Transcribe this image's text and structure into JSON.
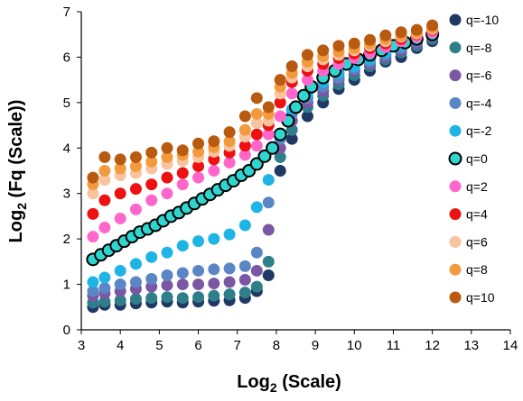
{
  "chart_data": {
    "type": "scatter",
    "xlabel_main": "Log",
    "xlabel_sub": "2",
    "xlabel_rest": " (Scale)",
    "ylabel_main": "Log",
    "ylabel_sub": "2",
    "ylabel_rest": " (Fq (Scale))",
    "xlim": [
      3,
      14
    ],
    "ylim": [
      0,
      7
    ],
    "x_ticks": [
      "3",
      "4",
      "5",
      "6",
      "7",
      "8",
      "9",
      "10",
      "11",
      "12",
      "13",
      "14"
    ],
    "y_ticks": [
      "0",
      "1",
      "2",
      "3",
      "4",
      "5",
      "6",
      "7"
    ],
    "grid": false,
    "legend_position": "right",
    "series": [
      {
        "name": "q=-10",
        "color": "#1f3864",
        "outline": "#1f3864",
        "points": [
          [
            3.3,
            0.5
          ],
          [
            3.6,
            0.55
          ],
          [
            4.0,
            0.55
          ],
          [
            4.4,
            0.58
          ],
          [
            4.8,
            0.6
          ],
          [
            5.2,
            0.62
          ],
          [
            5.6,
            0.6
          ],
          [
            6.0,
            0.62
          ],
          [
            6.4,
            0.64
          ],
          [
            6.8,
            0.65
          ],
          [
            7.2,
            0.7
          ],
          [
            7.5,
            0.85
          ],
          [
            7.8,
            1.2
          ],
          [
            8.1,
            3.5
          ],
          [
            8.4,
            4.2
          ],
          [
            8.8,
            4.7
          ],
          [
            9.2,
            5.0
          ],
          [
            9.6,
            5.3
          ],
          [
            10.0,
            5.5
          ],
          [
            10.4,
            5.7
          ],
          [
            10.8,
            5.9
          ],
          [
            11.2,
            6.0
          ],
          [
            11.6,
            6.2
          ],
          [
            12.0,
            6.35
          ]
        ]
      },
      {
        "name": "q=-8",
        "color": "#2e7f8a",
        "outline": "#2e7f8a",
        "points": [
          [
            3.3,
            0.6
          ],
          [
            3.6,
            0.62
          ],
          [
            4.0,
            0.65
          ],
          [
            4.4,
            0.68
          ],
          [
            4.8,
            0.7
          ],
          [
            5.2,
            0.72
          ],
          [
            5.6,
            0.7
          ],
          [
            6.0,
            0.72
          ],
          [
            6.4,
            0.75
          ],
          [
            6.8,
            0.78
          ],
          [
            7.2,
            0.82
          ],
          [
            7.5,
            0.95
          ],
          [
            7.8,
            1.5
          ],
          [
            8.1,
            3.8
          ],
          [
            8.4,
            4.4
          ],
          [
            8.8,
            4.9
          ],
          [
            9.2,
            5.15
          ],
          [
            9.6,
            5.4
          ],
          [
            10.0,
            5.6
          ],
          [
            10.4,
            5.8
          ],
          [
            10.8,
            5.95
          ],
          [
            11.2,
            6.1
          ],
          [
            11.6,
            6.25
          ],
          [
            12.0,
            6.4
          ]
        ]
      },
      {
        "name": "q=-6",
        "color": "#7a57a3",
        "outline": "#7a57a3",
        "points": [
          [
            3.3,
            0.75
          ],
          [
            3.6,
            0.8
          ],
          [
            4.0,
            0.85
          ],
          [
            4.4,
            0.9
          ],
          [
            4.8,
            0.95
          ],
          [
            5.2,
            0.98
          ],
          [
            5.6,
            1.0
          ],
          [
            6.0,
            1.0
          ],
          [
            6.4,
            1.02
          ],
          [
            6.8,
            1.05
          ],
          [
            7.2,
            1.1
          ],
          [
            7.5,
            1.3
          ],
          [
            7.8,
            2.2
          ],
          [
            8.1,
            4.0
          ],
          [
            8.4,
            4.6
          ],
          [
            8.8,
            5.0
          ],
          [
            9.2,
            5.25
          ],
          [
            9.6,
            5.5
          ],
          [
            10.0,
            5.7
          ],
          [
            10.4,
            5.85
          ],
          [
            10.8,
            6.0
          ],
          [
            11.2,
            6.15
          ],
          [
            11.6,
            6.3
          ],
          [
            12.0,
            6.45
          ]
        ]
      },
      {
        "name": "q=-4",
        "color": "#5b86c5",
        "outline": "#5b86c5",
        "points": [
          [
            3.3,
            0.85
          ],
          [
            3.6,
            0.92
          ],
          [
            4.0,
            1.0
          ],
          [
            4.4,
            1.05
          ],
          [
            4.8,
            1.12
          ],
          [
            5.2,
            1.2
          ],
          [
            5.6,
            1.25
          ],
          [
            6.0,
            1.3
          ],
          [
            6.4,
            1.33
          ],
          [
            6.8,
            1.35
          ],
          [
            7.2,
            1.4
          ],
          [
            7.5,
            1.7
          ],
          [
            7.8,
            2.8
          ],
          [
            8.1,
            4.2
          ],
          [
            8.4,
            4.75
          ],
          [
            8.8,
            5.1
          ],
          [
            9.2,
            5.35
          ],
          [
            9.6,
            5.55
          ],
          [
            10.0,
            5.75
          ],
          [
            10.4,
            5.9
          ],
          [
            10.8,
            6.05
          ],
          [
            11.2,
            6.2
          ],
          [
            11.6,
            6.35
          ],
          [
            12.0,
            6.48
          ]
        ]
      },
      {
        "name": "q=-2",
        "color": "#1fb4e6",
        "outline": "#1fb4e6",
        "points": [
          [
            3.3,
            1.05
          ],
          [
            3.6,
            1.15
          ],
          [
            4.0,
            1.3
          ],
          [
            4.4,
            1.45
          ],
          [
            4.8,
            1.6
          ],
          [
            5.2,
            1.7
          ],
          [
            5.6,
            1.85
          ],
          [
            6.0,
            1.95
          ],
          [
            6.4,
            2.0
          ],
          [
            6.8,
            2.1
          ],
          [
            7.2,
            2.3
          ],
          [
            7.5,
            2.7
          ],
          [
            7.8,
            3.3
          ],
          [
            8.1,
            4.3
          ],
          [
            8.4,
            4.85
          ],
          [
            8.8,
            5.2
          ],
          [
            9.2,
            5.45
          ],
          [
            9.6,
            5.65
          ],
          [
            10.0,
            5.8
          ],
          [
            10.4,
            5.95
          ],
          [
            10.8,
            6.1
          ],
          [
            11.2,
            6.25
          ],
          [
            11.6,
            6.4
          ],
          [
            12.0,
            6.5
          ]
        ]
      },
      {
        "name": "q=0",
        "color": "#2fd6d0",
        "outline": "#000000",
        "points": [
          [
            3.3,
            1.55
          ],
          [
            3.5,
            1.65
          ],
          [
            3.7,
            1.75
          ],
          [
            3.9,
            1.85
          ],
          [
            4.1,
            1.95
          ],
          [
            4.3,
            2.05
          ],
          [
            4.5,
            2.15
          ],
          [
            4.7,
            2.22
          ],
          [
            4.9,
            2.3
          ],
          [
            5.1,
            2.4
          ],
          [
            5.3,
            2.5
          ],
          [
            5.5,
            2.58
          ],
          [
            5.7,
            2.68
          ],
          [
            5.9,
            2.78
          ],
          [
            6.1,
            2.88
          ],
          [
            6.3,
            2.98
          ],
          [
            6.5,
            3.08
          ],
          [
            6.7,
            3.18
          ],
          [
            6.9,
            3.28
          ],
          [
            7.1,
            3.4
          ],
          [
            7.3,
            3.5
          ],
          [
            7.5,
            3.65
          ],
          [
            7.7,
            3.82
          ],
          [
            7.9,
            4.0
          ],
          [
            8.1,
            4.3
          ],
          [
            8.3,
            4.6
          ],
          [
            8.5,
            4.9
          ],
          [
            8.7,
            5.15
          ],
          [
            8.9,
            5.35
          ],
          [
            9.2,
            5.55
          ],
          [
            9.5,
            5.7
          ],
          [
            9.8,
            5.85
          ],
          [
            10.1,
            5.95
          ],
          [
            10.4,
            6.05
          ],
          [
            10.7,
            6.15
          ],
          [
            11.0,
            6.25
          ],
          [
            11.3,
            6.32
          ],
          [
            11.6,
            6.4
          ],
          [
            12.0,
            6.5
          ]
        ]
      },
      {
        "name": "q=2",
        "color": "#ff66cc",
        "outline": "#ff66cc",
        "points": [
          [
            3.3,
            2.05
          ],
          [
            3.6,
            2.25
          ],
          [
            4.0,
            2.45
          ],
          [
            4.4,
            2.65
          ],
          [
            4.8,
            2.85
          ],
          [
            5.2,
            3.0
          ],
          [
            5.6,
            3.2
          ],
          [
            6.0,
            3.35
          ],
          [
            6.4,
            3.5
          ],
          [
            6.8,
            3.68
          ],
          [
            7.2,
            3.85
          ],
          [
            7.5,
            4.05
          ],
          [
            7.8,
            4.3
          ],
          [
            8.1,
            4.7
          ],
          [
            8.4,
            5.2
          ],
          [
            8.8,
            5.5
          ],
          [
            9.2,
            5.7
          ],
          [
            9.6,
            5.85
          ],
          [
            10.0,
            5.98
          ],
          [
            10.4,
            6.1
          ],
          [
            10.8,
            6.22
          ],
          [
            11.2,
            6.35
          ],
          [
            11.6,
            6.45
          ],
          [
            12.0,
            6.55
          ]
        ]
      },
      {
        "name": "q=4",
        "color": "#ee1111",
        "outline": "#ee1111",
        "points": [
          [
            3.3,
            2.55
          ],
          [
            3.6,
            2.85
          ],
          [
            4.0,
            3.0
          ],
          [
            4.4,
            3.1
          ],
          [
            4.8,
            3.2
          ],
          [
            5.2,
            3.35
          ],
          [
            5.6,
            3.45
          ],
          [
            6.0,
            3.6
          ],
          [
            6.4,
            3.75
          ],
          [
            6.8,
            3.9
          ],
          [
            7.2,
            4.05
          ],
          [
            7.5,
            4.3
          ],
          [
            7.8,
            4.5
          ],
          [
            8.1,
            5.0
          ],
          [
            8.4,
            5.45
          ],
          [
            8.8,
            5.7
          ],
          [
            9.2,
            5.85
          ],
          [
            9.6,
            5.98
          ],
          [
            10.0,
            6.08
          ],
          [
            10.4,
            6.2
          ],
          [
            10.8,
            6.3
          ],
          [
            11.2,
            6.4
          ],
          [
            11.6,
            6.5
          ],
          [
            12.0,
            6.6
          ]
        ]
      },
      {
        "name": "q=6",
        "color": "#f9c39e",
        "outline": "#f9c39e",
        "points": [
          [
            3.3,
            3.0
          ],
          [
            3.6,
            3.3
          ],
          [
            4.0,
            3.4
          ],
          [
            4.4,
            3.45
          ],
          [
            4.8,
            3.55
          ],
          [
            5.2,
            3.65
          ],
          [
            5.6,
            3.72
          ],
          [
            6.0,
            3.8
          ],
          [
            6.4,
            3.92
          ],
          [
            6.8,
            4.05
          ],
          [
            7.2,
            4.25
          ],
          [
            7.5,
            4.55
          ],
          [
            7.8,
            4.6
          ],
          [
            8.1,
            5.2
          ],
          [
            8.4,
            5.55
          ],
          [
            8.8,
            5.8
          ],
          [
            9.2,
            5.95
          ],
          [
            9.6,
            6.05
          ],
          [
            10.0,
            6.15
          ],
          [
            10.4,
            6.25
          ],
          [
            10.8,
            6.35
          ],
          [
            11.2,
            6.45
          ],
          [
            11.6,
            6.52
          ],
          [
            12.0,
            6.62
          ]
        ]
      },
      {
        "name": "q=8",
        "color": "#f39a3f",
        "outline": "#f39a3f",
        "points": [
          [
            3.3,
            3.2
          ],
          [
            3.6,
            3.5
          ],
          [
            4.0,
            3.55
          ],
          [
            4.4,
            3.6
          ],
          [
            4.8,
            3.7
          ],
          [
            5.2,
            3.8
          ],
          [
            5.6,
            3.85
          ],
          [
            6.0,
            3.92
          ],
          [
            6.4,
            4.02
          ],
          [
            6.8,
            4.15
          ],
          [
            7.2,
            4.4
          ],
          [
            7.5,
            4.75
          ],
          [
            7.8,
            4.75
          ],
          [
            8.1,
            5.35
          ],
          [
            8.4,
            5.65
          ],
          [
            8.8,
            5.9
          ],
          [
            9.2,
            6.02
          ],
          [
            9.6,
            6.12
          ],
          [
            10.0,
            6.2
          ],
          [
            10.4,
            6.3
          ],
          [
            10.8,
            6.4
          ],
          [
            11.2,
            6.48
          ],
          [
            11.6,
            6.55
          ],
          [
            12.0,
            6.65
          ]
        ]
      },
      {
        "name": "q=10",
        "color": "#b85a10",
        "outline": "#b85a10",
        "points": [
          [
            3.3,
            3.35
          ],
          [
            3.6,
            3.8
          ],
          [
            4.0,
            3.75
          ],
          [
            4.4,
            3.8
          ],
          [
            4.8,
            3.9
          ],
          [
            5.2,
            4.0
          ],
          [
            5.6,
            3.95
          ],
          [
            6.0,
            4.1
          ],
          [
            6.4,
            4.15
          ],
          [
            6.8,
            4.35
          ],
          [
            7.2,
            4.7
          ],
          [
            7.5,
            5.1
          ],
          [
            7.8,
            4.9
          ],
          [
            8.1,
            5.5
          ],
          [
            8.4,
            5.8
          ],
          [
            8.8,
            6.05
          ],
          [
            9.2,
            6.15
          ],
          [
            9.6,
            6.25
          ],
          [
            10.0,
            6.3
          ],
          [
            10.4,
            6.38
          ],
          [
            10.8,
            6.48
          ],
          [
            11.2,
            6.55
          ],
          [
            11.6,
            6.6
          ],
          [
            12.0,
            6.7
          ]
        ]
      }
    ]
  }
}
